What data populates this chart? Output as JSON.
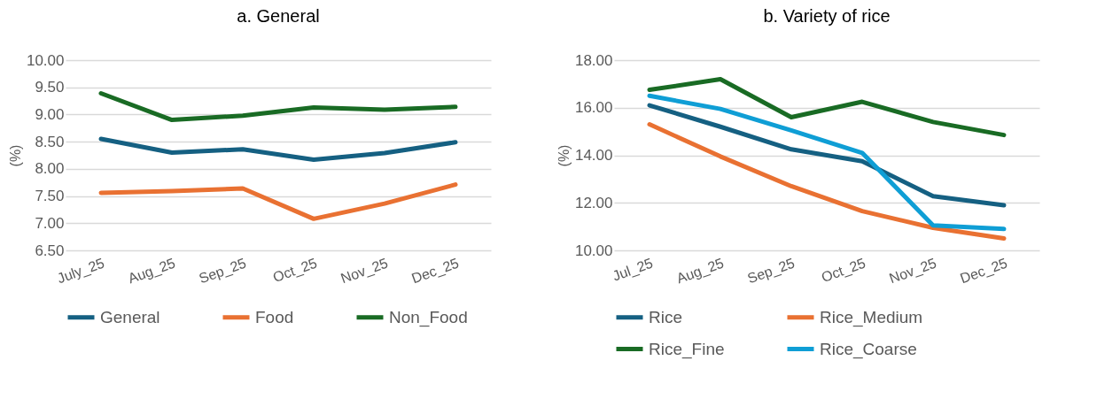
{
  "chart_data": [
    {
      "type": "line",
      "title": "a. General",
      "ylabel": "(%)",
      "categories": [
        "July_25",
        "Aug_25",
        "Sep_25",
        "Oct_25",
        "Nov_25",
        "Dec_25"
      ],
      "series": [
        {
          "name": "General",
          "color": "#156082",
          "values": [
            8.55,
            8.3,
            8.36,
            8.17,
            8.29,
            8.49
          ]
        },
        {
          "name": "Food",
          "color": "#e97132",
          "values": [
            7.56,
            7.59,
            7.64,
            7.08,
            7.36,
            7.71
          ]
        },
        {
          "name": "Non_Food",
          "color": "#196b24",
          "values": [
            9.39,
            8.9,
            8.98,
            9.13,
            9.09,
            9.14
          ]
        }
      ],
      "ylim": [
        6.5,
        10
      ],
      "yticks": [
        {
          "value": 6.5,
          "label": "6.50"
        },
        {
          "value": 7,
          "label": "7.00"
        },
        {
          "value": 7.5,
          "label": "7.50"
        },
        {
          "value": 8,
          "label": "8.00"
        },
        {
          "value": 8.5,
          "label": "8.50"
        },
        {
          "value": 9,
          "label": "9.00"
        },
        {
          "value": 9.5,
          "label": "9.50"
        },
        {
          "value": 10,
          "label": "10.00"
        }
      ],
      "grid": "y",
      "legend": "bottom"
    },
    {
      "type": "line",
      "title": "b. Variety of rice",
      "ylabel": "(%)",
      "categories": [
        "Jul_25",
        "Aug_25",
        "Sep_25",
        "Oct_25",
        "Nov_25",
        "Dec_25"
      ],
      "series": [
        {
          "name": "Rice",
          "color": "#156082",
          "values": [
            16.1,
            15.2,
            14.25,
            13.75,
            12.28,
            11.9
          ]
        },
        {
          "name": "Rice_Medium",
          "color": "#e97132",
          "values": [
            15.3,
            13.95,
            12.7,
            11.65,
            10.95,
            10.5
          ]
        },
        {
          "name": "Rice_Fine",
          "color": "#196b24",
          "values": [
            16.75,
            17.2,
            15.6,
            16.25,
            15.4,
            14.85
          ]
        },
        {
          "name": "Rice_Coarse",
          "color": "#0f9ed5",
          "values": [
            16.5,
            15.95,
            15.05,
            14.1,
            11.05,
            10.9
          ]
        }
      ],
      "ylim": [
        10,
        18
      ],
      "yticks": [
        {
          "value": 10,
          "label": "10.00"
        },
        {
          "value": 12,
          "label": "12.00"
        },
        {
          "value": 14,
          "label": "14.00"
        },
        {
          "value": 16,
          "label": "16.00"
        },
        {
          "value": 18,
          "label": "18.00"
        }
      ],
      "grid": "y",
      "legend": "bottom"
    }
  ]
}
